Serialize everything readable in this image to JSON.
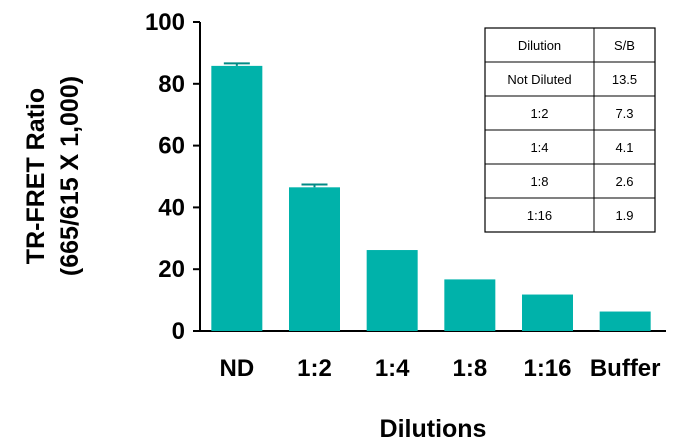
{
  "chart_data": {
    "type": "bar",
    "categories": [
      "ND",
      "1:2",
      "1:4",
      "1:8",
      "1:16",
      "Buffer"
    ],
    "values": [
      85.8,
      46.5,
      26.2,
      16.7,
      11.8,
      6.3
    ],
    "error": [
      0.8,
      0.9,
      0.2,
      0.2,
      0.2,
      0.1
    ],
    "xlabel": "Dilutions",
    "ylabel_lines": [
      "TR-FRET Ratio",
      "(665/615 X 1,000)"
    ],
    "ylim": [
      0,
      100
    ],
    "yticks": [
      "0",
      "20",
      "40",
      "60",
      "80",
      "100"
    ],
    "ytick_values": [
      0,
      20,
      40,
      60,
      80,
      100
    ],
    "bar_color": "#00b2aa",
    "grid": false,
    "legend": "none",
    "inset_table": {
      "position": "top-right",
      "headers": [
        "Dilution",
        "S/B"
      ],
      "rows": [
        [
          "Not Diluted",
          "13.5"
        ],
        [
          "1:2",
          "7.3"
        ],
        [
          "1:4",
          "4.1"
        ],
        [
          "1:8",
          "2.6"
        ],
        [
          "1:16",
          "1.9"
        ]
      ]
    }
  }
}
